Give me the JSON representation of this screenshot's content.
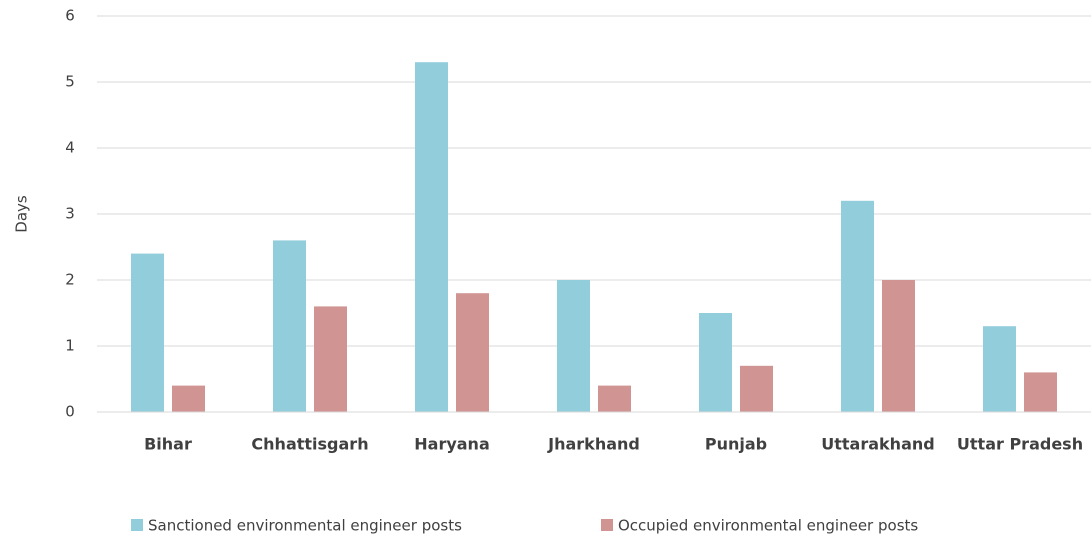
{
  "chart_data": {
    "type": "bar",
    "ylabel": "Days",
    "categories": [
      "Bihar",
      "Chhattisgarh",
      "Haryana",
      "Jharkhand",
      "Punjab",
      "Uttarakhand",
      "Uttar Pradesh"
    ],
    "series": [
      {
        "name": "Sanctioned environmental engineer posts",
        "color": "#92cddc",
        "values": [
          2.4,
          2.6,
          5.3,
          2.0,
          1.5,
          3.2,
          1.3
        ]
      },
      {
        "name": "Occupied environmental engineer posts",
        "color": "#d09493",
        "values": [
          0.4,
          1.6,
          1.8,
          0.4,
          0.7,
          2.0,
          0.6
        ]
      }
    ],
    "ylim": [
      0,
      6
    ],
    "yticks": [
      0,
      1,
      2,
      3,
      4,
      5,
      6
    ],
    "grid": true,
    "legend": "bottom"
  }
}
